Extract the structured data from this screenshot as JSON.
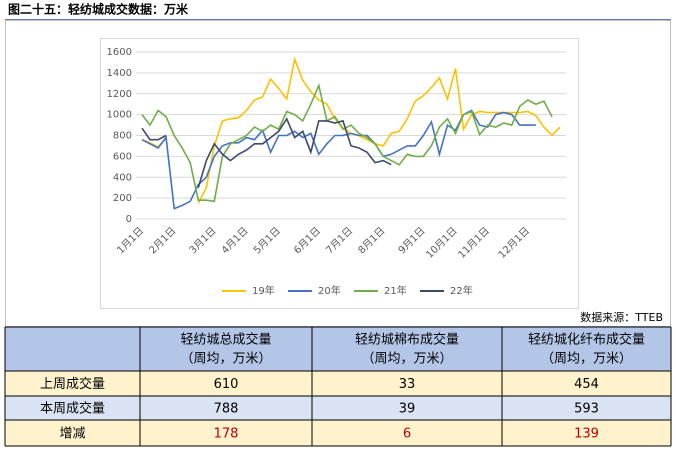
{
  "header": {
    "title": "图二十五：轻纺城成交数据：万米",
    "source": "数据来源：TTEB"
  },
  "chart_data": {
    "type": "line",
    "categories": [
      "1月1日",
      null,
      null,
      null,
      "2月1日",
      null,
      null,
      null,
      null,
      "3月1日",
      null,
      null,
      null,
      "4月1日",
      null,
      null,
      null,
      "5月1日",
      null,
      null,
      null,
      null,
      "6月1日",
      null,
      null,
      null,
      "7月1日",
      null,
      null,
      null,
      "8月1日",
      null,
      null,
      null,
      null,
      "9月1日",
      null,
      null,
      null,
      "10月1日",
      null,
      null,
      null,
      "11月1日",
      null,
      null,
      null,
      null,
      "12月1日",
      null,
      null,
      null,
      null
    ],
    "series": [
      {
        "name": "19年",
        "color": "#ffc000",
        "values": [
          760,
          730,
          690,
          780,
          null,
          null,
          null,
          150,
          300,
          700,
          940,
          960,
          970,
          1040,
          1140,
          1170,
          1340,
          1250,
          1150,
          1530,
          1330,
          1220,
          1140,
          1100,
          960,
          870,
          820,
          800,
          760,
          720,
          700,
          820,
          840,
          960,
          1130,
          1180,
          1260,
          1350,
          1150,
          1440,
          860,
          1000,
          1030,
          1020,
          1020,
          1020,
          1020,
          1020,
          1030,
          990,
          880,
          800,
          880
        ]
      },
      {
        "name": "20年",
        "color": "#4472c4",
        "values": [
          760,
          720,
          680,
          780,
          100,
          130,
          170,
          330,
          400,
          600,
          700,
          730,
          730,
          780,
          760,
          850,
          640,
          800,
          800,
          840,
          780,
          820,
          620,
          720,
          800,
          800,
          820,
          800,
          800,
          720,
          600,
          620,
          660,
          700,
          700,
          800,
          930,
          620,
          900,
          850,
          1000,
          1040,
          900,
          880,
          1000,
          1020,
          1000,
          900,
          900,
          900,
          null,
          null,
          null
        ]
      },
      {
        "name": "21年",
        "color": "#70ad47",
        "values": [
          1000,
          900,
          1040,
          980,
          800,
          680,
          540,
          180,
          180,
          170,
          600,
          720,
          760,
          800,
          880,
          840,
          900,
          860,
          1030,
          1000,
          940,
          1100,
          1280,
          940,
          980,
          860,
          900,
          820,
          780,
          720,
          600,
          560,
          520,
          620,
          600,
          600,
          700,
          880,
          960,
          820,
          1000,
          1030,
          810,
          900,
          880,
          920,
          900,
          1080,
          1140,
          1100,
          1130,
          980,
          null
        ]
      },
      {
        "name": "22年",
        "color": "#3b4a6b",
        "values": [
          870,
          760,
          760,
          800,
          null,
          null,
          null,
          300,
          560,
          720,
          620,
          560,
          620,
          660,
          720,
          720,
          780,
          840,
          960,
          780,
          840,
          640,
          940,
          940,
          920,
          940,
          700,
          680,
          640,
          540,
          560,
          520,
          null,
          null,
          null,
          null,
          null,
          null,
          null,
          null,
          null,
          null,
          null,
          null,
          null,
          null,
          null,
          null,
          null,
          null,
          null,
          null,
          null
        ]
      }
    ],
    "ylim": [
      0,
      1600
    ],
    "yticks": [
      0,
      200,
      400,
      600,
      800,
      1000,
      1200,
      1400,
      1600
    ],
    "grid": true,
    "legend": "bottom"
  },
  "table": {
    "columns": [
      {
        "name": "轻纺城总成交量",
        "unit": "（周均，万米）"
      },
      {
        "name": "轻纺城棉布成交量",
        "unit": "（周均，万米）"
      },
      {
        "name": "轻纺城化纤布成交量",
        "unit": "（周均，万米）"
      }
    ],
    "rows": [
      {
        "label": "上周成交量",
        "values": [
          610,
          33,
          454
        ]
      },
      {
        "label": "本周成交量",
        "values": [
          788,
          39,
          593
        ]
      },
      {
        "label": "增减",
        "values": [
          178,
          6,
          139
        ]
      }
    ]
  }
}
